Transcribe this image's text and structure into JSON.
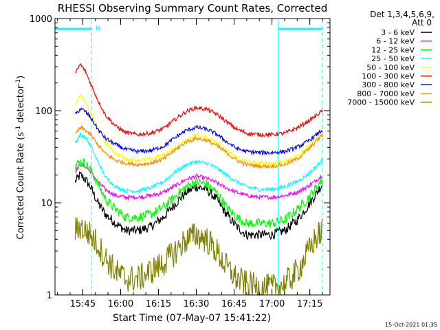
{
  "chart_data": {
    "type": "line",
    "title": "RHESSI Observing Summary Count Rates, Corrected",
    "xlabel": "Start Time (07-May-07 15:41:22)",
    "ylabel_main": "Corrected Count Rate (s",
    "ylabel_sup1": "-1",
    "ylabel_mid": " detector",
    "ylabel_sup2": "-1",
    "ylabel_end": ")",
    "yscale": "log",
    "ylim": [
      1,
      1000
    ],
    "xlim_minutes": [
      934,
      1043
    ],
    "yticks": [
      {
        "value": 1,
        "label": "1"
      },
      {
        "value": 10,
        "label": "10"
      },
      {
        "value": 100,
        "label": "100"
      },
      {
        "value": 1000,
        "label": "1000"
      }
    ],
    "xticks": [
      {
        "minute": 945,
        "label": "15:45"
      },
      {
        "minute": 960,
        "label": "16:00"
      },
      {
        "minute": 975,
        "label": "16:15"
      },
      {
        "minute": 990,
        "label": "16:30"
      },
      {
        "minute": 1005,
        "label": "16:45"
      },
      {
        "minute": 1020,
        "label": "17:00"
      },
      {
        "minute": 1035,
        "label": "17:15"
      }
    ],
    "legend_header": [
      "Det 1,3,4,5,6,9,",
      "Att 0"
    ],
    "legend_position": "right",
    "night_marker": "N",
    "night_intervals": [
      [
        934,
        948.5
      ],
      [
        1022.5,
        1040
      ]
    ],
    "saa_lines_minutes": [
      934,
      948.5,
      1022.5,
      1040
    ],
    "x_minutes": [
      942,
      944,
      946,
      948,
      951,
      954,
      958,
      962,
      967,
      972,
      977,
      982,
      986,
      990,
      994,
      998,
      1002,
      1006,
      1010,
      1015,
      1020,
      1025,
      1030,
      1034,
      1037,
      1040
    ],
    "series": [
      {
        "name": "3 - 6 keV",
        "color": "#000000",
        "values": [
          17,
          20,
          18,
          15,
          10,
          7.5,
          6,
          5,
          5,
          5.5,
          7,
          10,
          13,
          15,
          14,
          11,
          7.5,
          5.5,
          4.5,
          4.5,
          4.5,
          5,
          6.5,
          9,
          12,
          16
        ]
      },
      {
        "name": "6 - 12 keV",
        "color": "#ff00ff",
        "values": [
          22,
          26,
          25,
          22,
          17,
          14,
          12,
          11.5,
          11.5,
          12,
          13,
          15.5,
          18,
          19.5,
          18.5,
          16.5,
          14.5,
          13,
          12,
          11.5,
          11.5,
          12,
          13,
          15,
          17,
          20
        ]
      },
      {
        "name": "12 - 25 keV",
        "color": "#00ff00",
        "values": [
          25,
          28,
          27,
          23,
          16,
          11,
          8.5,
          7,
          7,
          7.5,
          9,
          12,
          15,
          17,
          16,
          13,
          9,
          7,
          6,
          6,
          6,
          6.5,
          8.5,
          11,
          14,
          18
        ]
      },
      {
        "name": "25 - 50 keV",
        "color": "#00ffff",
        "values": [
          45,
          55,
          52,
          42,
          28,
          19,
          15,
          13.5,
          13.5,
          14.5,
          17,
          22,
          26,
          28,
          27,
          24,
          20,
          17,
          15,
          14,
          14,
          15,
          17,
          20,
          24,
          29
        ]
      },
      {
        "name": "50 - 100 keV",
        "color": "#ffff00",
        "values": [
          120,
          150,
          125,
          95,
          65,
          45,
          35,
          30,
          29,
          30,
          33,
          40,
          48,
          55,
          52,
          45,
          37,
          31,
          28,
          27,
          27,
          28,
          32,
          40,
          48,
          58
        ]
      },
      {
        "name": "100 - 300 keV",
        "color": "#ff0000",
        "values": [
          250,
          320,
          270,
          200,
          130,
          90,
          68,
          58,
          55,
          57,
          64,
          82,
          98,
          108,
          104,
          92,
          76,
          63,
          57,
          55,
          55,
          57,
          65,
          76,
          86,
          100
        ]
      },
      {
        "name": "300 - 800 keV",
        "color": "#0000ff",
        "values": [
          90,
          105,
          98,
          85,
          63,
          50,
          43,
          38,
          36,
          37,
          41,
          52,
          61,
          66,
          63,
          56,
          46,
          39,
          36,
          35,
          35,
          36,
          40,
          46,
          53,
          62
        ]
      },
      {
        "name": "800 - 7000 keV",
        "color": "#ff8c00",
        "values": [
          55,
          65,
          62,
          55,
          43,
          34,
          29,
          27,
          26,
          27,
          30,
          38,
          46,
          50,
          48,
          42,
          35,
          29,
          26,
          25,
          25,
          26,
          30,
          37,
          45,
          55
        ]
      },
      {
        "name": "7000 - 15000 keV",
        "color": "#808000",
        "values": [
          5,
          5.5,
          5,
          4.5,
          3.5,
          2.5,
          1.8,
          1.5,
          1.5,
          1.8,
          2.2,
          3,
          4,
          4.5,
          4,
          3,
          2,
          1.5,
          1.3,
          1.2,
          1.2,
          1.3,
          1.8,
          2.8,
          4,
          5
        ]
      }
    ]
  },
  "footer_timestamp": "15-Oct-2021 01:35"
}
